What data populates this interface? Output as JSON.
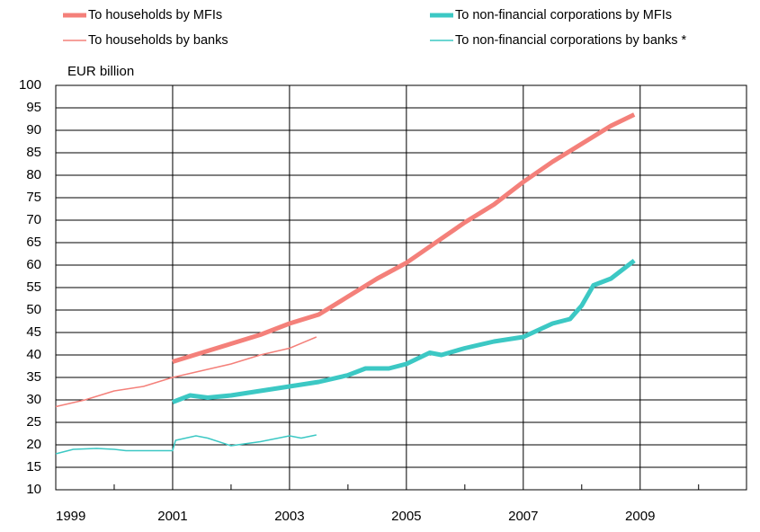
{
  "chart_data": {
    "type": "line",
    "y_label": "EUR billion",
    "xlim": [
      1999,
      2010.82
    ],
    "xticks": [
      1999,
      2001,
      2003,
      2005,
      2007,
      2009
    ],
    "ylim": [
      10,
      100
    ],
    "yticks": [
      10,
      15,
      20,
      25,
      30,
      35,
      40,
      45,
      50,
      55,
      60,
      65,
      70,
      75,
      80,
      85,
      90,
      95,
      100
    ],
    "grid": true,
    "legend": "top",
    "series": [
      {
        "name": "To households by MFIs",
        "color": "#f4807a",
        "width": 5,
        "x": [
          2001.0,
          2001.5,
          2002.0,
          2002.5,
          2003.0,
          2003.5,
          2004.0,
          2004.5,
          2005.0,
          2005.5,
          2006.0,
          2006.5,
          2007.0,
          2007.5,
          2008.0,
          2008.5,
          2008.9
        ],
        "values": [
          38.5,
          40.5,
          42.5,
          44.5,
          47,
          49,
          53,
          57,
          60.5,
          65,
          69.5,
          73.5,
          78.5,
          83,
          87,
          91,
          93.5
        ]
      },
      {
        "name": "To non-financial corporations by MFIs",
        "color": "#3cc8c4",
        "width": 5,
        "x": [
          2001.0,
          2001.3,
          2001.6,
          2002.0,
          2002.5,
          2003.0,
          2003.5,
          2004.0,
          2004.3,
          2004.7,
          2005.0,
          2005.4,
          2005.6,
          2006.0,
          2006.5,
          2007.0,
          2007.5,
          2007.8,
          2008.0,
          2008.2,
          2008.5,
          2008.9
        ],
        "values": [
          29.5,
          31,
          30.5,
          31,
          32,
          33,
          34,
          35.5,
          37,
          37,
          38,
          40.5,
          40,
          41.5,
          43,
          44,
          47,
          48,
          51,
          55.5,
          57,
          61
        ]
      },
      {
        "name": "To households by banks",
        "color": "#f4807a",
        "width": 1.5,
        "x": [
          1999.0,
          1999.5,
          2000.0,
          2000.5,
          2001.0,
          2001.5,
          2002.0,
          2002.5,
          2003.0,
          2003.46
        ],
        "values": [
          28.5,
          30,
          32,
          33,
          35,
          36.5,
          38,
          40,
          41.5,
          44
        ]
      },
      {
        "name": "To non-financial corporations by banks *",
        "color": "#3cc8c4",
        "width": 1.5,
        "x": [
          1999.0,
          1999.3,
          1999.7,
          2000.0,
          2000.2,
          2001.0,
          2001.05,
          2001.4,
          2001.6,
          2002.0,
          2002.5,
          2003.0,
          2003.2,
          2003.46
        ],
        "values": [
          18,
          19,
          19.2,
          19,
          18.7,
          18.7,
          21,
          22,
          21.5,
          19.8,
          20.7,
          22,
          21.5,
          22.2
        ]
      }
    ]
  }
}
